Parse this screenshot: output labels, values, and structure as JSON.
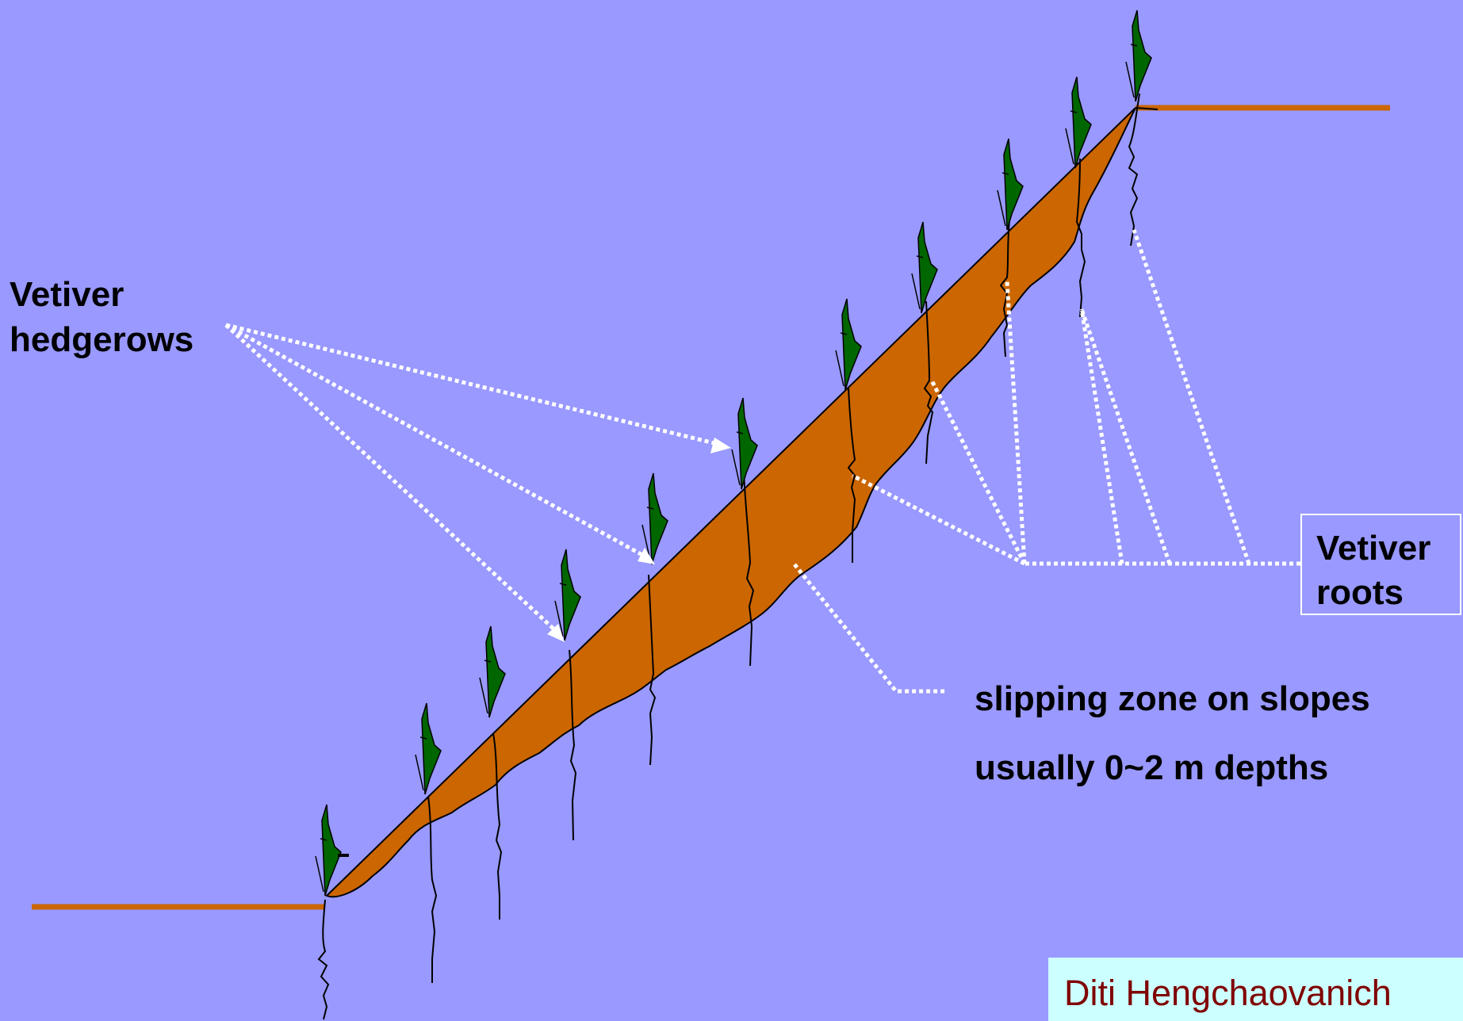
{
  "labels": {
    "hedgerows": [
      "Vetiver",
      "hedgerows"
    ],
    "roots": [
      "Vetiver",
      "roots"
    ],
    "slipping_zone": "slipping zone on slopes",
    "depth": "usually 0~2 m depths"
  },
  "credit": "Diti Hengchaovanich",
  "colors": {
    "background": "#9999ff",
    "soil": "#cc6600",
    "grass": "#006600",
    "leader": "#ffffff",
    "credit_box": "#ccffff",
    "credit_text": "#800000"
  }
}
